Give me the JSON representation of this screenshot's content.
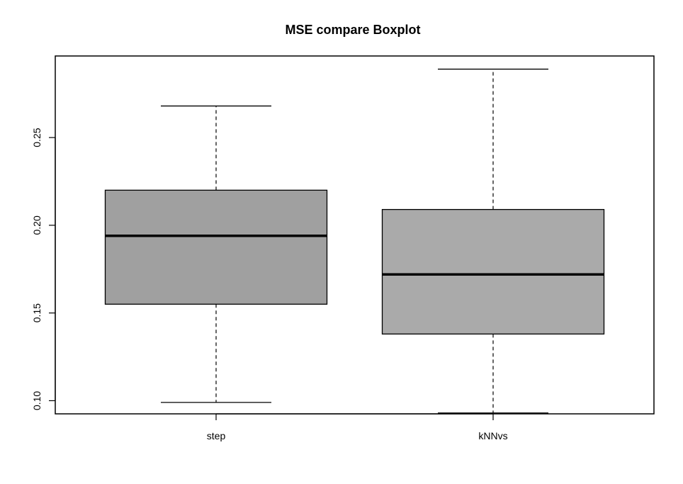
{
  "chart_data": {
    "type": "boxplot",
    "title": "MSE compare Boxplot",
    "xlabel": "",
    "ylabel": "",
    "categories": [
      "step",
      "kNNvs"
    ],
    "boxes": [
      {
        "label": "step",
        "whisker_low": 0.099,
        "q1": 0.155,
        "median": 0.194,
        "q3": 0.22,
        "whisker_high": 0.268
      },
      {
        "label": "kNNvs",
        "whisker_low": 0.093,
        "q1": 0.138,
        "median": 0.172,
        "q3": 0.209,
        "whisker_high": 0.289
      }
    ],
    "yticks": [
      "0.10",
      "0.15",
      "0.20",
      "0.25"
    ],
    "ylim": [
      0.0925,
      0.2965
    ],
    "box_colors": [
      "#a0a0a0",
      "#aaaaaa"
    ],
    "grid": false,
    "legend": "none"
  }
}
